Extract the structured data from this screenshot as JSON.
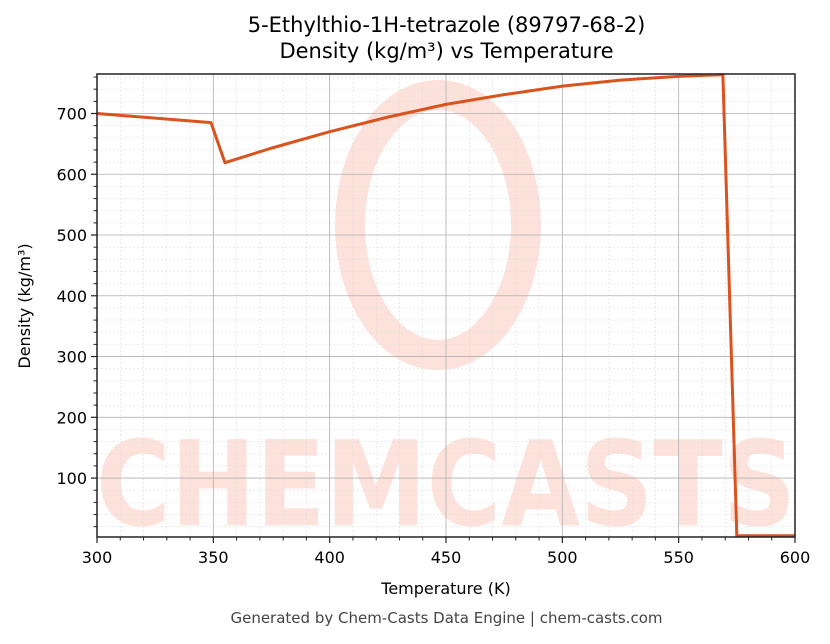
{
  "title_line1": "5-Ethylthio-1H-tetrazole (89797-68-2)",
  "title_line2": "Density (kg/m³) vs Temperature",
  "footer": "Generated by Chem-Casts Data Engine | chem-casts.com",
  "watermark": "CHEMCASTS",
  "colors": {
    "line": "#d9531e",
    "watermark": "#fde2dc",
    "grid_major": "#b0b0b0",
    "grid_minor": "#dddddd"
  },
  "chart_data": {
    "type": "line",
    "title": "5-Ethylthio-1H-tetrazole (89797-68-2)\nDensity (kg/m³) vs Temperature",
    "xlabel": "Temperature (K)",
    "ylabel": "Density (kg/m³)",
    "xlim": [
      300,
      600
    ],
    "ylim": [
      3,
      765
    ],
    "xticks": [
      300,
      350,
      400,
      450,
      500,
      550,
      600
    ],
    "yticks": [
      100,
      200,
      300,
      400,
      500,
      600,
      700
    ],
    "grid": {
      "major": true,
      "minor": true
    },
    "legend": null,
    "series": [
      {
        "name": "Density",
        "x": [
          300,
          349,
          355,
          375,
          400,
          425,
          450,
          475,
          500,
          525,
          550,
          569,
          575,
          600
        ],
        "values": [
          700,
          685,
          619,
          643,
          670,
          694,
          715,
          731,
          745,
          755,
          761,
          764,
          5,
          5
        ]
      }
    ]
  }
}
